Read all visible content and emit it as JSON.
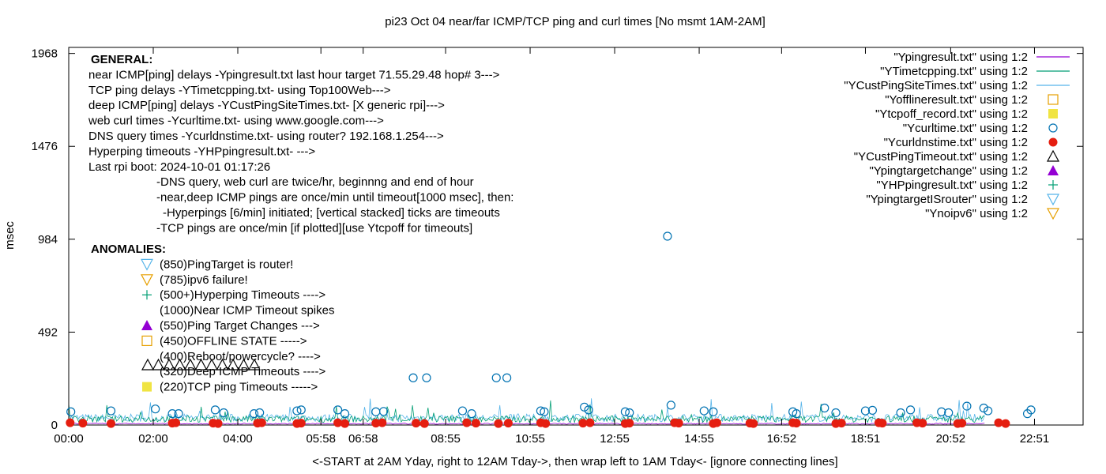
{
  "chart_data": {
    "type": "scatter",
    "title": "pi23 Oct 04  near/far ICMP/TCP ping and curl times [No msmt 1AM-2AM]",
    "xlabel": "<-START at 2AM Yday, right to 12AM Tday->, then wrap left to 1AM Tday<- [ignore connecting lines]",
    "ylabel": "msec",
    "xlim": [
      0,
      1440
    ],
    "ylim": [
      0,
      2000
    ],
    "grid": false,
    "legend_position": "top-right",
    "yticks": [
      {
        "value": 0,
        "label": "0"
      },
      {
        "value": 492,
        "label": "492"
      },
      {
        "value": 984,
        "label": "984"
      },
      {
        "value": 1476,
        "label": "1476"
      },
      {
        "value": 1968,
        "label": "1968"
      }
    ],
    "xticks": [
      {
        "value": 0,
        "label": "00:00"
      },
      {
        "value": 120,
        "label": "02:00"
      },
      {
        "value": 240,
        "label": "04:00"
      },
      {
        "value": 358,
        "label": "05:58"
      },
      {
        "value": 418,
        "label": "06:58"
      },
      {
        "value": 535,
        "label": "08:55"
      },
      {
        "value": 655,
        "label": "10:55"
      },
      {
        "value": 775,
        "label": "12:55"
      },
      {
        "value": 895,
        "label": "14:55"
      },
      {
        "value": 1012,
        "label": "16:52"
      },
      {
        "value": 1131,
        "label": "18:51"
      },
      {
        "value": 1252,
        "label": "20:52"
      },
      {
        "value": 1371,
        "label": "22:51"
      }
    ],
    "legend": [
      {
        "label": "\"Ypingresult.txt\" using 1:2",
        "kind": "line",
        "color": "#9400d3"
      },
      {
        "label": "\"YTimetcpping.txt\" using 1:2",
        "kind": "line",
        "color": "#009e73"
      },
      {
        "label": "\"YCustPingSiteTimes.txt\" using 1:2",
        "kind": "line",
        "color": "#56b4e9"
      },
      {
        "label": "\"Yofflineresult.txt\" using 1:2",
        "kind": "square-open",
        "color": "#e69f00"
      },
      {
        "label": "\"Ytcpoff_record.txt\" using 1:2",
        "kind": "square-filled",
        "color": "#f0e442"
      },
      {
        "label": "\"Ycurltime.txt\" using 1:2",
        "kind": "circle-open",
        "color": "#0072b2"
      },
      {
        "label": "\"Ycurldnstime.txt\" using 1:2",
        "kind": "circle-filled",
        "color": "#e51e10"
      },
      {
        "label": "\"YCustPingTimeout.txt\" using 1:2",
        "kind": "triangle-open",
        "color": "#000000"
      },
      {
        "label": "\"Ypingtargetchange\" using 1:2",
        "kind": "triangle-filled",
        "color": "#9400d3"
      },
      {
        "label": "\"YHPpingresult.txt\" using 1:2",
        "kind": "plus",
        "color": "#009e73"
      },
      {
        "label": "\"YpingtargetISrouter\" using 1:2",
        "kind": "tridown-open",
        "color": "#56b4e9"
      },
      {
        "label": "\"Ynoipv6\" using 1:2",
        "kind": "tridown-open",
        "color": "#e69f00"
      }
    ],
    "annotations_general": [
      "GENERAL:",
      "near ICMP[ping] delays -Ypingresult.txt last hour target 71.55.29.48 hop# 3--->",
      "TCP ping delays -YTimetcpping.txt- using Top100Web--->",
      "deep ICMP[ping] delays -YCustPingSiteTimes.txt- [X generic rpi]--->",
      "web curl times -Ycurltime.txt- using www.google.com--->",
      "DNS query times -Ycurldnstime.txt- using router? 192.168.1.254--->",
      "Hyperping timeouts -YHPpingresult.txt- --->",
      "Last rpi boot: 2024-10-01 01:17:26",
      "-DNS query, web curl are twice/hr, beginnng and end of hour",
      "-near,deep ICMP pings are once/min until timeout[1000 msec], then:",
      "-Hyperpings [6/min] initiated; [vertical stacked] ticks are timeouts",
      "-TCP pings are once/min [if plotted][use Ytcpoff for timeouts]"
    ],
    "annotations_anomalies": [
      {
        "marker": "",
        "text": "ANOMALIES:"
      },
      {
        "marker": "tridown-open-blue",
        "text": "(850)PingTarget is router!"
      },
      {
        "marker": "tridown-open-orange",
        "text": "(785)ipv6 failure!"
      },
      {
        "marker": "plus-green",
        "text": "(500+)Hyperping Timeouts ---->"
      },
      {
        "marker": "",
        "text": "(1000)Near ICMP Timeout spikes"
      },
      {
        "marker": "triangle-filled-purple",
        "text": "(550)Ping Target Changes --->"
      },
      {
        "marker": "square-open-orange",
        "text": "(450)OFFLINE STATE ----->"
      },
      {
        "marker": "",
        "text": "(400)Reboot/powercycle? ---->"
      },
      {
        "marker": "",
        "text": "(320)Deep ICMP Timeouts ---->"
      },
      {
        "marker": "square-filled-yellow",
        "text": "(220)TCP ping Timeouts ----->"
      }
    ],
    "series": [
      {
        "name": "\"Ycurltime.txt\" using 1:2",
        "marker": "circle-open",
        "x": [
          3,
          60,
          123,
          147,
          156,
          208,
          220,
          263,
          271,
          324,
          330,
          382,
          392,
          436,
          447,
          489,
          508,
          559,
          572,
          607,
          622,
          670,
          675,
          732,
          738,
          790,
          796,
          850,
          855,
          902,
          915,
          1028,
          1033,
          1073,
          1089,
          1131,
          1141,
          1181,
          1195,
          1239,
          1249,
          1275,
          1299,
          1305,
          1361,
          1366
        ],
        "y": [
          70,
          75,
          85,
          60,
          60,
          80,
          65,
          60,
          65,
          75,
          80,
          80,
          60,
          70,
          72,
          250,
          250,
          75,
          60,
          250,
          250,
          75,
          70,
          95,
          80,
          70,
          65,
          1000,
          105,
          75,
          70,
          70,
          60,
          90,
          65,
          75,
          78,
          65,
          80,
          70,
          65,
          100,
          90,
          75,
          60,
          80
        ]
      },
      {
        "name": "\"Ycurldnstime.txt\" using 1:2",
        "marker": "circle-filled",
        "x": [
          2,
          20,
          60,
          147,
          152,
          205,
          212,
          268,
          274,
          324,
          330,
          382,
          392,
          436,
          445,
          493,
          505,
          565,
          578,
          610,
          624,
          670,
          677,
          730,
          740,
          790,
          796,
          860,
          866,
          915,
          920,
          967,
          972,
          1028,
          1033,
          1089,
          1097,
          1150,
          1155,
          1204,
          1212,
          1262,
          1268,
          1320,
          1330
        ],
        "y": [
          12,
          10,
          8,
          10,
          12,
          10,
          8,
          10,
          12,
          8,
          10,
          12,
          8,
          10,
          12,
          10,
          8,
          12,
          10,
          8,
          10,
          12,
          8,
          10,
          12,
          8,
          10,
          12,
          10,
          8,
          12,
          10,
          8,
          12,
          10,
          8,
          10,
          12,
          10,
          12,
          10,
          8,
          10,
          12,
          8
        ]
      }
    ]
  }
}
